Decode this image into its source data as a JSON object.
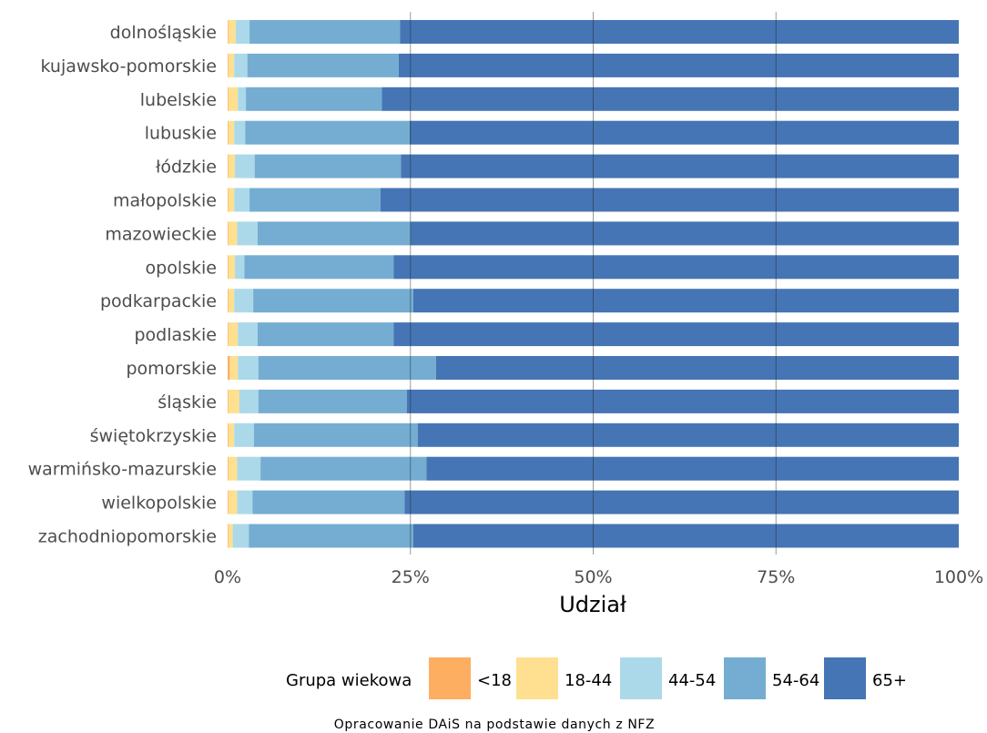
{
  "chart_data": {
    "type": "bar",
    "orientation": "horizontal",
    "stacked": "percent",
    "xlabel": "Udział",
    "xlim": [
      0,
      1
    ],
    "x_ticks": [
      "0%",
      "25%",
      "50%",
      "75%",
      "100%"
    ],
    "x_tick_values": [
      0,
      0.25,
      0.5,
      0.75,
      1
    ],
    "grid": true,
    "legend_position": "bottom",
    "legend_title": "Grupa wiekowa",
    "caption": "Opracowanie DAiS na podstawie danych z NFZ",
    "categories": [
      "dolnośląskie",
      "kujawsko-pomorskie",
      "lubelskie",
      "lubuskie",
      "łódzkie",
      "małopolskie",
      "mazowieckie",
      "opolskie",
      "podkarpackie",
      "podlaskie",
      "pomorskie",
      "śląskie",
      "świętokrzyskie",
      "warmińsko-mazurskie",
      "wielkopolskie",
      "zachodniopomorskie"
    ],
    "series": [
      {
        "name": "<18",
        "color": "#fdae61",
        "values": [
          0.001,
          0.001,
          0.001,
          0.001,
          0.001,
          0.001,
          0.001,
          0.001,
          0.001,
          0.001,
          0.003,
          0.001,
          0.001,
          0.001,
          0.001,
          0.001
        ]
      },
      {
        "name": "18-44",
        "color": "#fee090",
        "values": [
          0.01,
          0.008,
          0.013,
          0.008,
          0.009,
          0.008,
          0.012,
          0.009,
          0.008,
          0.013,
          0.011,
          0.015,
          0.008,
          0.012,
          0.012,
          0.006
        ]
      },
      {
        "name": "44-54",
        "color": "#abd9e9",
        "values": [
          0.019,
          0.018,
          0.011,
          0.015,
          0.027,
          0.021,
          0.028,
          0.013,
          0.026,
          0.027,
          0.028,
          0.026,
          0.027,
          0.032,
          0.021,
          0.022
        ]
      },
      {
        "name": "54-64",
        "color": "#74add1",
        "values": [
          0.206,
          0.207,
          0.186,
          0.225,
          0.2,
          0.179,
          0.209,
          0.204,
          0.219,
          0.186,
          0.243,
          0.203,
          0.224,
          0.227,
          0.208,
          0.225
        ]
      },
      {
        "name": "65+",
        "color": "#4575b4",
        "values": [
          0.764,
          0.766,
          0.789,
          0.751,
          0.763,
          0.791,
          0.75,
          0.773,
          0.746,
          0.773,
          0.715,
          0.755,
          0.74,
          0.728,
          0.758,
          0.746
        ]
      }
    ]
  }
}
